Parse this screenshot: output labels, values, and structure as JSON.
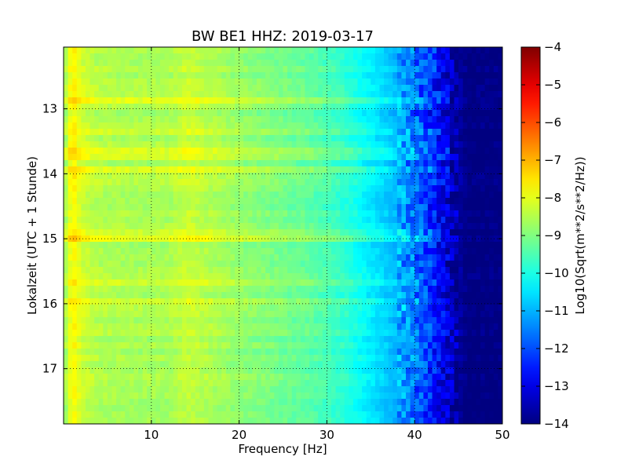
{
  "chart_data": {
    "type": "heatmap",
    "title": "BW BE1 HHZ: 2019-03-17",
    "xlabel": "Frequency [Hz]",
    "ylabel": "Lokalzeit (UTC + 1 Stunde)",
    "colorbar_label": "Log10(Sqrt(m**2/s**2/Hz))",
    "colormap": "jet",
    "xlim": [
      0,
      50
    ],
    "ylim": [
      17.85,
      12.05
    ],
    "y_inverted": true,
    "x_ticks": [
      10,
      20,
      30,
      40,
      50
    ],
    "y_ticks": [
      13,
      14,
      15,
      16,
      17
    ],
    "clim": [
      -14,
      -4
    ],
    "colorbar_ticks": [
      -4,
      -5,
      -6,
      -7,
      -8,
      -9,
      -10,
      -11,
      -12,
      -13,
      -14
    ],
    "grid": true,
    "profile_frequency_hz": [
      0,
      1,
      2,
      4,
      8,
      12,
      14,
      20,
      28,
      32,
      35,
      38,
      40,
      42,
      44,
      46,
      50
    ],
    "profile_log10_value": [
      -8.9,
      -7.6,
      -8.2,
      -8.5,
      -8.6,
      -8.6,
      -8.3,
      -8.8,
      -9.3,
      -9.8,
      -10.4,
      -11.0,
      -11.6,
      -12.4,
      -13.3,
      -14.0,
      -14.0
    ],
    "bright_bands_hour": [
      12.9,
      13.35,
      13.7,
      13.95,
      14.95,
      15.7,
      15.95
    ]
  }
}
